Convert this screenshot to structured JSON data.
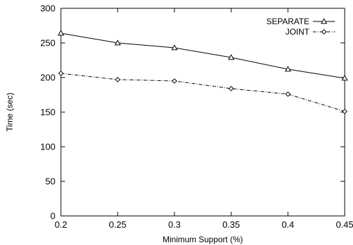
{
  "chart_data": {
    "type": "line",
    "xlabel": "Minimum Support (%)",
    "ylabel": "Time (sec)",
    "xlim": [
      0.2,
      0.45
    ],
    "ylim": [
      0,
      300
    ],
    "x_ticks": [
      "0.2",
      "0.25",
      "0.3",
      "0.35",
      "0.4",
      "0.45"
    ],
    "y_ticks": [
      "0",
      "50",
      "100",
      "150",
      "200",
      "250",
      "300"
    ],
    "x": [
      0.2,
      0.25,
      0.3,
      0.35,
      0.4,
      0.45
    ],
    "series": [
      {
        "name": "SEPARATE",
        "values": [
          264,
          250,
          243,
          229,
          212,
          199
        ],
        "marker": "triangle",
        "line": "solid"
      },
      {
        "name": "JOINT",
        "values": [
          206,
          197,
          195,
          184,
          176,
          151
        ],
        "marker": "diamond",
        "line": "dash-dot"
      }
    ],
    "legend_position": "top-right",
    "grid": false
  }
}
